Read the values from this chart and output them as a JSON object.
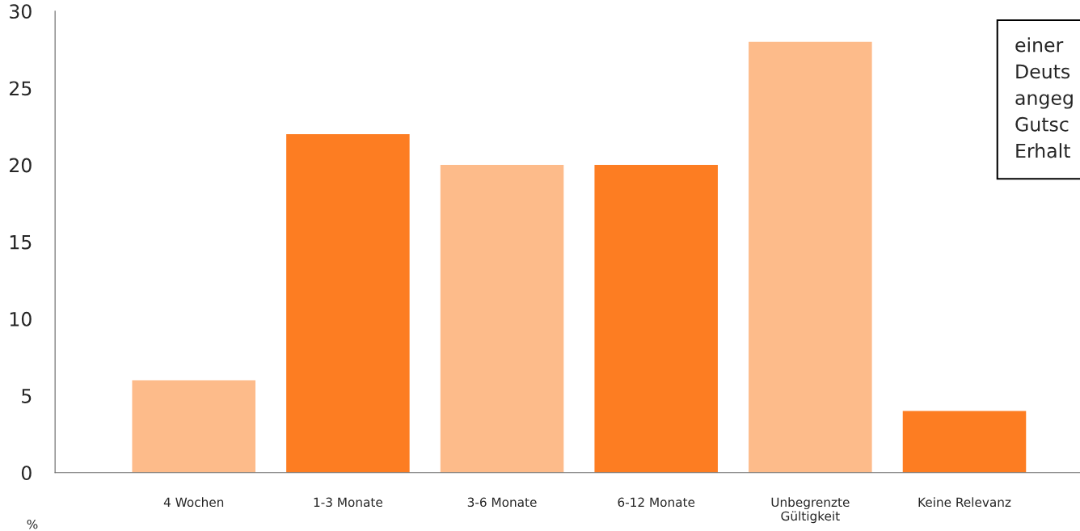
{
  "chart_data": {
    "type": "bar",
    "ylabel": "%",
    "categories": [
      "4 Wochen",
      "1-3 Monate",
      "3-6 Monate",
      "6-12 Monate",
      "Unbegrenzte\nGültigkeit",
      "Keine Relevanz"
    ],
    "values": [
      6,
      22,
      20,
      20,
      28,
      4
    ],
    "colors": [
      "#fdbb8a",
      "#fd7d22",
      "#fdbb8a",
      "#fd7d22",
      "#fdbb8a",
      "#fd7d22"
    ],
    "ylim": [
      0,
      30
    ],
    "yticks": [
      0,
      5,
      10,
      15,
      20,
      25,
      30
    ],
    "grid": false,
    "annotations": [
      "einer\nDeuts\nangeg\nGutsc\nErhalt"
    ]
  }
}
